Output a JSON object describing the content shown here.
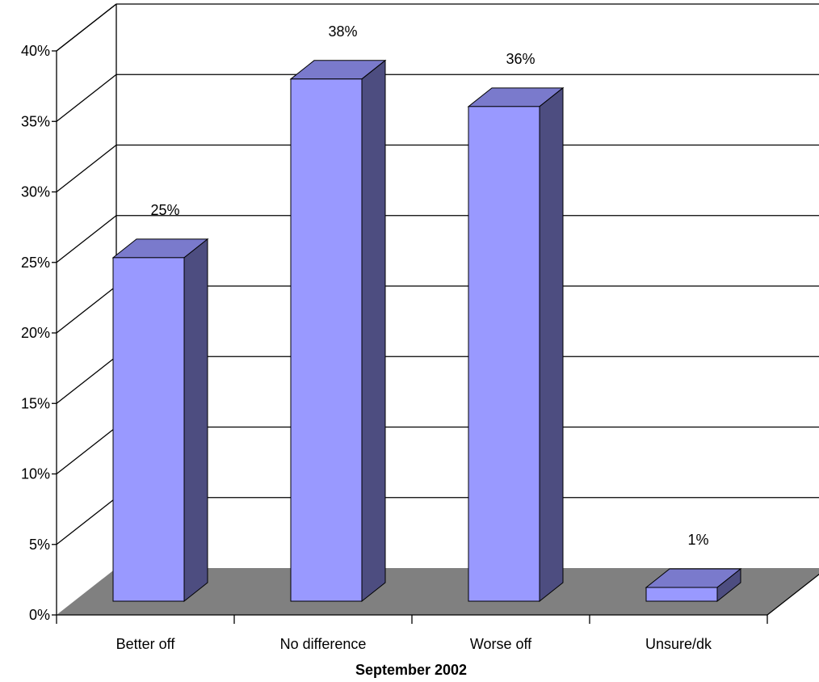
{
  "chart_data": {
    "type": "bar",
    "style": "3d",
    "categories": [
      "Better off",
      "No difference",
      "Worse off",
      "Unsure/dk"
    ],
    "values": [
      25,
      38,
      36,
      1
    ],
    "data_labels": [
      "25%",
      "38%",
      "36%",
      "1%"
    ],
    "title": "",
    "xlabel": "September 2002",
    "ylabel": "",
    "ylim": [
      0,
      40
    ],
    "y_ticks": [
      "0%",
      "5%",
      "10%",
      "15%",
      "20%",
      "25%",
      "30%",
      "35%",
      "40%"
    ],
    "grid": true,
    "legend": "none",
    "colors": {
      "bar_front": "#9999ff",
      "bar_top": "#7a7acc",
      "bar_side": "#4d4d80",
      "floor": "#808080",
      "grid": "#000000"
    }
  }
}
